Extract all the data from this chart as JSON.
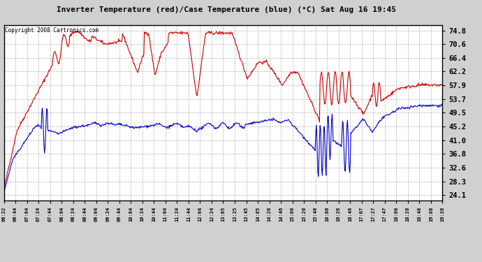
{
  "title": "Inverter Temperature (red)/Case Temperature (blue) (°C) Sat Aug 16 19:45",
  "copyright": "Copyright 2008 Cartronics.com",
  "outer_bg": "#d0d0d0",
  "plot_bg_color": "#ffffff",
  "red_color": "#cc0000",
  "blue_color": "#0000cc",
  "yticks": [
    24.1,
    28.3,
    32.6,
    36.8,
    41.0,
    45.2,
    49.5,
    53.7,
    57.9,
    62.2,
    66.4,
    70.6,
    74.8
  ],
  "ymin": 22.5,
  "ymax": 76.5,
  "grid_color": "#aaaaaa",
  "xtick_labels": [
    "06:22",
    "06:44",
    "07:04",
    "07:24",
    "07:44",
    "08:04",
    "08:24",
    "08:44",
    "09:04",
    "09:24",
    "09:44",
    "10:04",
    "10:24",
    "10:44",
    "11:04",
    "11:24",
    "11:44",
    "12:04",
    "12:24",
    "13:05",
    "13:25",
    "13:45",
    "14:05",
    "14:26",
    "14:46",
    "15:06",
    "15:26",
    "15:46",
    "16:06",
    "16:26",
    "16:46",
    "17:07",
    "17:27",
    "17:47",
    "18:08",
    "18:28",
    "18:48",
    "19:08",
    "19:28"
  ]
}
